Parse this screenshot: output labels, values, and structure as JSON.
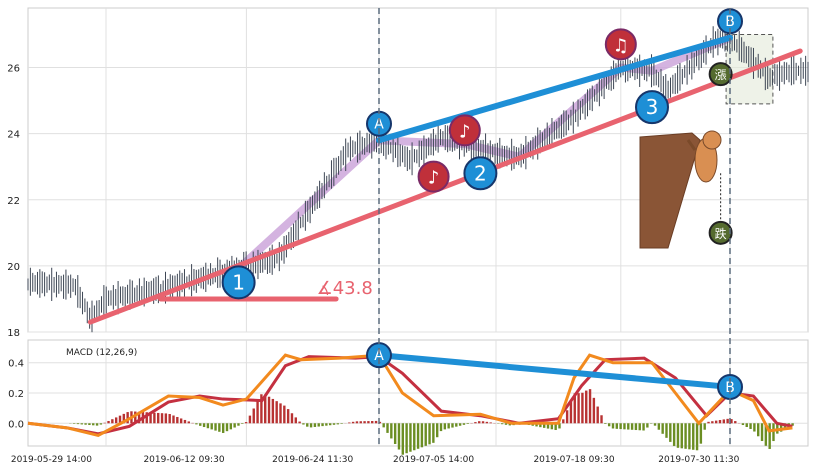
{
  "chart_data": [
    {
      "type": "candlestick",
      "ylim": [
        18,
        27.8
      ],
      "y_ticks": [
        18,
        20,
        22,
        24,
        26
      ],
      "price_path": [
        [
          0,
          19.5
        ],
        [
          0.06,
          19.4
        ],
        [
          0.08,
          18.4
        ],
        [
          0.1,
          19.0
        ],
        [
          0.17,
          19.3
        ],
        [
          0.25,
          19.8
        ],
        [
          0.3,
          20.1
        ],
        [
          0.32,
          20.2
        ],
        [
          0.41,
          23.5
        ],
        [
          0.45,
          23.8
        ],
        [
          0.49,
          23.2
        ],
        [
          0.53,
          23.9
        ],
        [
          0.6,
          23.4
        ],
        [
          0.63,
          23.3
        ],
        [
          0.7,
          24.5
        ],
        [
          0.76,
          26.0
        ],
        [
          0.8,
          25.9
        ],
        [
          0.82,
          25.3
        ],
        [
          0.88,
          26.8
        ],
        [
          0.9,
          26.9
        ],
        [
          0.95,
          25.7
        ],
        [
          0.98,
          25.9
        ]
      ],
      "trendline_support": {
        "from": [
          0.08,
          18.3
        ],
        "to": [
          0.99,
          26.5
        ],
        "color": "#e8636f"
      },
      "trendline_resistance": {
        "from": [
          0.45,
          23.8
        ],
        "to": [
          0.9,
          26.9
        ],
        "color": "#1e8fd6"
      },
      "angle_label": "∡43.8",
      "wave_markers": [
        {
          "label": "1",
          "x": 0.27,
          "y": 19.5
        },
        {
          "label": "A",
          "x": 0.45,
          "y": 24.3
        },
        {
          "label": "2",
          "x": 0.58,
          "y": 22.8
        },
        {
          "label": "3",
          "x": 0.8,
          "y": 24.8
        },
        {
          "label": "B",
          "x": 0.9,
          "y": 27.4
        }
      ],
      "note_markers": [
        {
          "symbol": "♪",
          "x": 0.52,
          "y": 22.7
        },
        {
          "symbol": "♪",
          "x": 0.56,
          "y": 24.1
        },
        {
          "symbol": "♫",
          "x": 0.76,
          "y": 26.7
        }
      ],
      "badges": [
        {
          "text": "跌",
          "x": 0.888,
          "y": 21.0
        },
        {
          "text": "漲",
          "x": 0.888,
          "y": 25.8
        }
      ]
    },
    {
      "type": "line",
      "title": "MACD (12,26,9)",
      "ylim": [
        -0.15,
        0.55
      ],
      "y_ticks": [
        0.0,
        0.2,
        0.4
      ],
      "x_labels": [
        "2019-05-29 14:00",
        "2019-06-12 09:30",
        "2019-06-24 11:30",
        "2019-07-05 14:00",
        "2019-07-18 09:30",
        "2019-07-30 11:30"
      ],
      "macd": [
        [
          0,
          0
        ],
        [
          0.05,
          -0.03
        ],
        [
          0.09,
          -0.08
        ],
        [
          0.13,
          0.03
        ],
        [
          0.18,
          0.18
        ],
        [
          0.22,
          0.17
        ],
        [
          0.25,
          0.12
        ],
        [
          0.28,
          0.16
        ],
        [
          0.33,
          0.45
        ],
        [
          0.35,
          0.42
        ],
        [
          0.4,
          0.43
        ],
        [
          0.45,
          0.45
        ],
        [
          0.48,
          0.2
        ],
        [
          0.52,
          0.05
        ],
        [
          0.58,
          0.06
        ],
        [
          0.62,
          0.0
        ],
        [
          0.68,
          0.0
        ],
        [
          0.7,
          0.3
        ],
        [
          0.72,
          0.45
        ],
        [
          0.75,
          0.4
        ],
        [
          0.8,
          0.4
        ],
        [
          0.83,
          0.2
        ],
        [
          0.86,
          0.0
        ],
        [
          0.9,
          0.22
        ],
        [
          0.93,
          0.15
        ],
        [
          0.95,
          -0.05
        ],
        [
          0.98,
          -0.03
        ]
      ],
      "signal": [
        [
          0,
          0
        ],
        [
          0.05,
          -0.03
        ],
        [
          0.09,
          -0.07
        ],
        [
          0.13,
          -0.02
        ],
        [
          0.18,
          0.14
        ],
        [
          0.22,
          0.18
        ],
        [
          0.25,
          0.16
        ],
        [
          0.3,
          0.15
        ],
        [
          0.33,
          0.38
        ],
        [
          0.36,
          0.44
        ],
        [
          0.42,
          0.43
        ],
        [
          0.45,
          0.44
        ],
        [
          0.48,
          0.33
        ],
        [
          0.53,
          0.08
        ],
        [
          0.58,
          0.05
        ],
        [
          0.63,
          0.0
        ],
        [
          0.68,
          0.03
        ],
        [
          0.71,
          0.25
        ],
        [
          0.74,
          0.42
        ],
        [
          0.79,
          0.43
        ],
        [
          0.83,
          0.3
        ],
        [
          0.87,
          0.05
        ],
        [
          0.9,
          0.2
        ],
        [
          0.93,
          0.18
        ],
        [
          0.96,
          0.0
        ],
        [
          0.98,
          -0.02
        ]
      ],
      "macd_color": "#f28a1e",
      "signal_color": "#c43040",
      "hist_up_color": "#b83232",
      "hist_down_color": "#6b8e23",
      "divergence_line": {
        "from": [
          0.45,
          0.45
        ],
        "to": [
          0.9,
          0.24
        ],
        "labels": [
          "A",
          "B"
        ],
        "color": "#1e8fd6"
      }
    }
  ]
}
